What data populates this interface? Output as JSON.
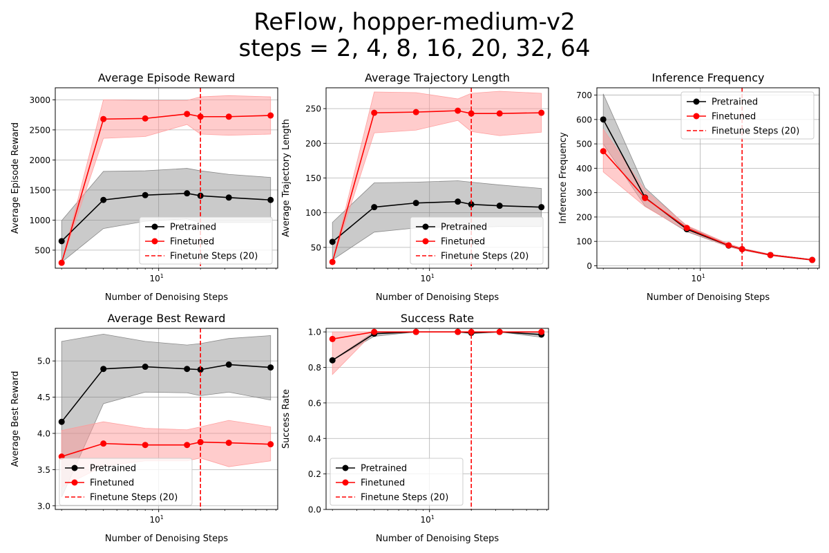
{
  "figure": {
    "title_line1": "ReFlow, hopper-medium-v2",
    "title_line2": "steps = 2, 4, 8, 16, 20, 32, 64"
  },
  "colors": {
    "pretrained": "#000000",
    "finetuned": "#ff0000",
    "pretrained_band": "#808080",
    "finetuned_band": "#ff9999",
    "grid": "#b0b0b0"
  },
  "chart_data": [
    {
      "type": "line",
      "title": "Average Episode Reward",
      "xlabel": "Number of Denoising Steps",
      "ylabel": "Average Episode Reward",
      "xscale": "log",
      "x": [
        2,
        4,
        8,
        16,
        20,
        32,
        64
      ],
      "xlim": [
        1.8,
        72
      ],
      "ylim": [
        200,
        3200
      ],
      "yticks": [
        500,
        1000,
        1500,
        2000,
        2500,
        3000
      ],
      "grid": true,
      "legend": "lower right",
      "vline": {
        "x": 20,
        "label": "Finetune Steps (20)"
      },
      "series": [
        {
          "name": "Pretrained",
          "values": [
            650,
            1335,
            1415,
            1445,
            1405,
            1375,
            1335
          ],
          "low": [
            300,
            860,
            980,
            1020,
            960,
            960,
            960
          ],
          "high": [
            990,
            1810,
            1820,
            1860,
            1820,
            1760,
            1710
          ]
        },
        {
          "name": "Finetuned",
          "values": [
            290,
            2680,
            2690,
            2765,
            2720,
            2720,
            2740
          ],
          "low": [
            290,
            2360,
            2390,
            2590,
            2430,
            2410,
            2430
          ],
          "high": [
            290,
            3000,
            2990,
            2990,
            3050,
            3070,
            3050
          ]
        }
      ]
    },
    {
      "type": "line",
      "title": "Average Trajectory Length",
      "xlabel": "Number of Denoising Steps",
      "ylabel": "Average Trajectory Length",
      "xscale": "log",
      "x": [
        2,
        4,
        8,
        16,
        20,
        32,
        64
      ],
      "xlim": [
        1.8,
        72
      ],
      "ylim": [
        20,
        280
      ],
      "yticks": [
        50,
        100,
        150,
        200,
        250
      ],
      "grid": true,
      "legend": "lower right",
      "vline": {
        "x": 20,
        "label": "Finetune Steps (20)"
      },
      "series": [
        {
          "name": "Pretrained",
          "values": [
            58,
            108,
            114,
            116,
            112,
            110,
            108
          ],
          "low": [
            32,
            72,
            78,
            80,
            79,
            80,
            80
          ],
          "high": [
            86,
            143,
            144,
            146,
            144,
            140,
            135
          ]
        },
        {
          "name": "Finetuned",
          "values": [
            29,
            244,
            245,
            247,
            243,
            243,
            244
          ],
          "low": [
            29,
            215,
            219,
            233,
            217,
            211,
            216
          ],
          "high": [
            29,
            274,
            273,
            264,
            272,
            275,
            272
          ]
        }
      ]
    },
    {
      "type": "line",
      "title": "Inference Frequency",
      "xlabel": "Number of Denoising Steps",
      "ylabel": "Inference Frequency",
      "xscale": "log",
      "x": [
        2,
        4,
        8,
        16,
        20,
        32,
        64
      ],
      "xlim": [
        1.8,
        72
      ],
      "ylim": [
        -10,
        730
      ],
      "yticks": [
        0,
        100,
        200,
        300,
        400,
        500,
        600,
        700
      ],
      "grid": true,
      "legend": "upper right",
      "vline": {
        "x": 20,
        "label": "Finetune Steps (20)"
      },
      "series": [
        {
          "name": "Pretrained",
          "values": [
            600,
            280,
            150,
            83,
            68,
            44,
            24
          ],
          "low": [
            500,
            245,
            140,
            78,
            64,
            42,
            22
          ],
          "high": [
            705,
            320,
            162,
            90,
            72,
            47,
            26
          ]
        },
        {
          "name": "Finetuned",
          "values": [
            470,
            278,
            155,
            84,
            68,
            44,
            24
          ],
          "low": [
            385,
            243,
            143,
            78,
            64,
            42,
            22
          ],
          "high": [
            560,
            310,
            165,
            90,
            72,
            47,
            26
          ]
        }
      ]
    },
    {
      "type": "line",
      "title": "Average Best Reward",
      "xlabel": "Number of Denoising Steps",
      "ylabel": "Average Best Reward",
      "xscale": "log",
      "x": [
        2,
        4,
        8,
        16,
        20,
        32,
        64
      ],
      "xlim": [
        1.8,
        72
      ],
      "ylim": [
        2.95,
        5.45
      ],
      "yticks": [
        3.0,
        3.5,
        4.0,
        4.5,
        5.0
      ],
      "ytick_labels": [
        "3.0",
        "3.5",
        "4.0",
        "4.5",
        "5.0"
      ],
      "grid": true,
      "legend": "lower left",
      "vline": {
        "x": 20,
        "label": "Finetune Steps (20)"
      },
      "series": [
        {
          "name": "Pretrained",
          "values": [
            4.16,
            4.89,
            4.92,
            4.89,
            4.88,
            4.95,
            4.91
          ],
          "low": [
            3.12,
            4.41,
            4.57,
            4.56,
            4.52,
            4.57,
            4.46
          ],
          "high": [
            5.27,
            5.37,
            5.27,
            5.22,
            5.24,
            5.31,
            5.35
          ]
        },
        {
          "name": "Finetuned",
          "values": [
            3.68,
            3.86,
            3.84,
            3.84,
            3.88,
            3.87,
            3.85
          ],
          "low": [
            3.26,
            3.55,
            3.62,
            3.62,
            3.66,
            3.54,
            3.62
          ],
          "high": [
            4.04,
            4.16,
            4.07,
            4.05,
            4.09,
            4.18,
            4.09
          ]
        }
      ]
    },
    {
      "type": "line",
      "title": "Success Rate",
      "xlabel": "Number of Denoising Steps",
      "ylabel": "Success Rate",
      "xscale": "log",
      "x": [
        2,
        4,
        8,
        16,
        20,
        32,
        64
      ],
      "xlim": [
        1.8,
        72
      ],
      "ylim": [
        0,
        1.02
      ],
      "yticks": [
        0.0,
        0.2,
        0.4,
        0.6,
        0.8,
        1.0
      ],
      "ytick_labels": [
        "0.0",
        "0.2",
        "0.4",
        "0.6",
        "0.8",
        "1.0"
      ],
      "grid": true,
      "legend": "lower left",
      "vline": {
        "x": 20,
        "label": "Finetune Steps (20)"
      },
      "series": [
        {
          "name": "Pretrained",
          "values": [
            0.84,
            0.99,
            1.0,
            1.0,
            0.995,
            1.0,
            0.985
          ],
          "low": [
            0.84,
            0.975,
            1.0,
            1.0,
            0.99,
            1.0,
            0.97
          ],
          "high": [
            0.84,
            1.0,
            1.0,
            1.0,
            1.0,
            1.0,
            1.0
          ]
        },
        {
          "name": "Finetuned",
          "values": [
            0.96,
            1.0,
            1.0,
            1.0,
            1.0,
            1.0,
            1.0
          ],
          "low": [
            0.76,
            1.0,
            1.0,
            1.0,
            1.0,
            1.0,
            1.0
          ],
          "high": [
            1.0,
            1.0,
            1.0,
            1.0,
            1.0,
            1.0,
            1.0
          ]
        }
      ]
    }
  ]
}
